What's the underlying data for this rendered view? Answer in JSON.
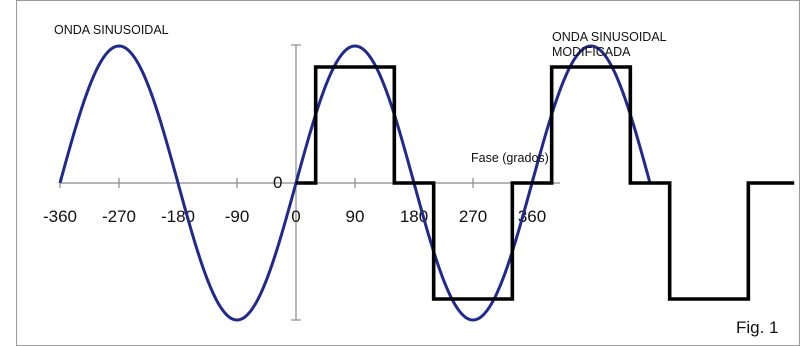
{
  "chart_data": {
    "type": "line",
    "title": "",
    "xlabel": "Fase (grados)",
    "ylabel": "",
    "x_ticks": [
      -360,
      -270,
      -180,
      -90,
      0,
      90,
      180,
      270,
      360
    ],
    "x_tick_labels": [
      "-360",
      "-270",
      "-180",
      "-90",
      "0",
      "90",
      "180",
      "270",
      "360"
    ],
    "origin_label": "0",
    "xlim": [
      -360,
      760
    ],
    "ylim": [
      -1,
      1
    ],
    "grid": false,
    "series": [
      {
        "name": "ONDA SINUSOIDAL",
        "color": "#1f2a8c",
        "function": "sin",
        "x_range": [
          -360,
          540
        ]
      },
      {
        "name": "ONDA SINUSOIDAL MODIFICADA",
        "color": "#000000",
        "x": [
          0,
          30,
          30,
          150,
          150,
          210,
          210,
          330,
          330,
          390,
          390,
          510,
          510,
          570,
          570,
          690,
          690,
          760
        ],
        "y": [
          0,
          0,
          1,
          1,
          0,
          0,
          -1,
          -1,
          0,
          0,
          1,
          1,
          0,
          0,
          -1,
          -1,
          0,
          0
        ]
      }
    ]
  },
  "annotations": {
    "sine_label": "ONDA SINUSOIDAL",
    "modified_label_line1": "ONDA SINUSOIDAL",
    "modified_label_line2": "MODIFICADA",
    "phase_label": "Fase (grados)",
    "figure_label": "Fig. 1"
  }
}
